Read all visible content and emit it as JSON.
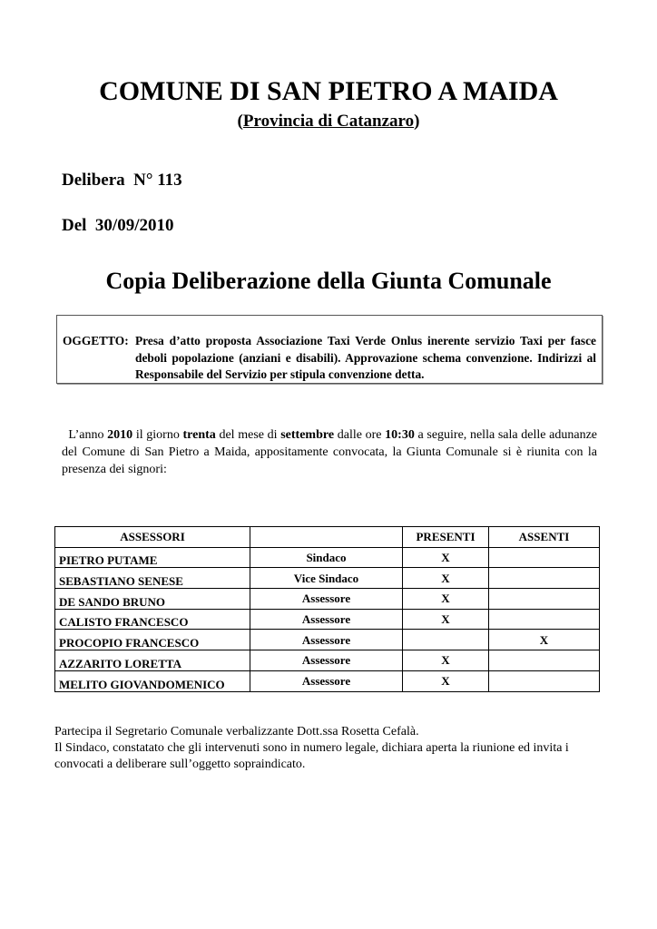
{
  "header": {
    "title": "COMUNE DI SAN PIETRO A MAIDA",
    "subtitle_open": "(",
    "subtitle": "Provincia di Catanzaro",
    "subtitle_close": ")"
  },
  "delibera": {
    "label": "Delibera  N° 113",
    "date": "Del  30/09/2010"
  },
  "heading": "Copia Deliberazione della Giunta Comunale",
  "oggetto": {
    "label": "OGGETTO:",
    "text": "Presa d’atto proposta Associazione Taxi Verde Onlus inerente servizio Taxi per fasce deboli popolazione (anziani e disabili). Approvazione schema convenzione. Indirizzi al Responsabile del Servizio per stipula convenzione detta."
  },
  "intro": {
    "p1": "L’anno ",
    "year": "2010",
    "p2": " il giorno ",
    "day": "trenta",
    "p3": " del mese di ",
    "month": "settembre",
    "p4": " dalle ore ",
    "time": "10:30",
    "p5": " a seguire, nella sala delle adunanze del Comune di San Pietro a Maida, appositamente convocata, la Giunta Comunale si è riunita con la presenza dei signori:"
  },
  "table": {
    "headers": [
      "ASSESSORI",
      "",
      "PRESENTI",
      "ASSENTI"
    ],
    "rows": [
      [
        "PIETRO PUTAME",
        "Sindaco",
        "X",
        ""
      ],
      [
        "SEBASTIANO SENESE",
        "Vice Sindaco",
        "X",
        ""
      ],
      [
        "DE SANDO BRUNO",
        "Assessore",
        "X",
        ""
      ],
      [
        "CALISTO FRANCESCO",
        "Assessore",
        "X",
        ""
      ],
      [
        "PROCOPIO FRANCESCO",
        "Assessore",
        "",
        "X"
      ],
      [
        "AZZARITO LORETTA",
        "Assessore",
        "X",
        ""
      ],
      [
        "MELITO GIOVANDOMENICO",
        "Assessore",
        "X",
        ""
      ]
    ]
  },
  "footer": {
    "line1": "Partecipa il Segretario Comunale verbalizzante Dott.ssa Rosetta Cefalà.",
    "line2": "Il Sindaco, constatato che gli intervenuti sono in numero legale, dichiara aperta la riunione ed invita i convocati a deliberare sull’oggetto sopraindicato."
  }
}
